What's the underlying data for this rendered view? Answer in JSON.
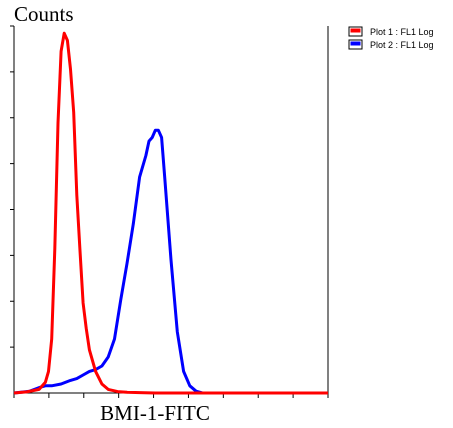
{
  "chart_data": {
    "type": "line",
    "title": "",
    "ylabel": "Counts",
    "xlabel": "BMI-1-FITC",
    "x_scale": "log",
    "grid": false,
    "legend_position": "top-right",
    "series": [
      {
        "name": "Plot 1 : FL1 Log",
        "color": "#ff0000",
        "x": [
          0,
          4,
          8,
          10,
          11,
          12,
          13,
          14,
          15,
          16,
          17,
          18,
          19,
          20,
          21,
          22,
          23,
          24,
          26,
          28,
          30,
          33,
          36,
          40,
          45,
          60,
          75,
          90,
          100
        ],
        "y": [
          0,
          0.3,
          1,
          3,
          6,
          15,
          40,
          75,
          95,
          100,
          98,
          90,
          78,
          55,
          40,
          25,
          18,
          12,
          6,
          2.5,
          1,
          0.4,
          0.2,
          0.1,
          0,
          0,
          0,
          0,
          0
        ]
      },
      {
        "name": "Plot 2 : FL1 Log",
        "color": "#0000ff",
        "x": [
          0,
          5,
          8,
          10,
          12,
          15,
          18,
          20,
          22,
          24,
          26,
          28,
          30,
          32,
          34,
          36,
          38,
          40,
          42,
          43,
          44,
          45,
          46,
          47,
          48,
          50,
          52,
          54,
          56,
          58,
          60,
          70,
          85,
          100
        ],
        "y": [
          0,
          0.5,
          1.5,
          2,
          2,
          2.5,
          3.5,
          4,
          5,
          6,
          6.5,
          7.5,
          10,
          15,
          26,
          36,
          47,
          60,
          66,
          70,
          71,
          73,
          73,
          71,
          60,
          37,
          17,
          6,
          2,
          0.5,
          0,
          0,
          0,
          0
        ]
      }
    ],
    "xlim": [
      0,
      100
    ],
    "ylim": [
      0,
      102
    ],
    "n_x_ticks": 9,
    "n_y_ticks": 8
  }
}
